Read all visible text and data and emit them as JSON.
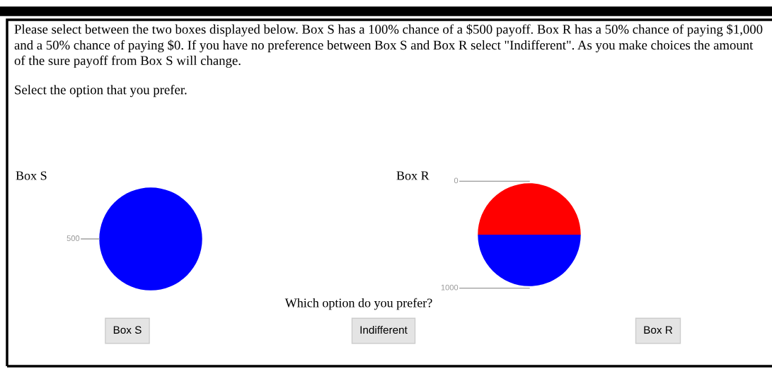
{
  "chart_data": [
    {
      "type": "other",
      "annotations": [
        "Please select between the two boxes displayed below. Box S has a 100% chance of a $500 payoff. Box R has a 50% chance of paying $1,000 and a 50% chance of paying $0. If you have no preference between Box S and Box R select \"Indifferent\". As you make choices the amount of the sure payoff from Box S will change.",
        "Select the option that you prefer."
      ]
    },
    {
      "type": "pie",
      "title": "Box S",
      "categories": [
        "500"
      ],
      "values": [
        100
      ],
      "colors": [
        "#0000ff"
      ]
    },
    {
      "type": "pie",
      "title": "Box R",
      "categories": [
        "0",
        "1000"
      ],
      "values": [
        50,
        50
      ],
      "colors": [
        "#ff0000",
        "#0000ff"
      ]
    },
    {
      "type": "other",
      "annotations": [
        "Which option do you prefer?",
        "Box S",
        "Indifferent",
        "Box R"
      ]
    }
  ]
}
